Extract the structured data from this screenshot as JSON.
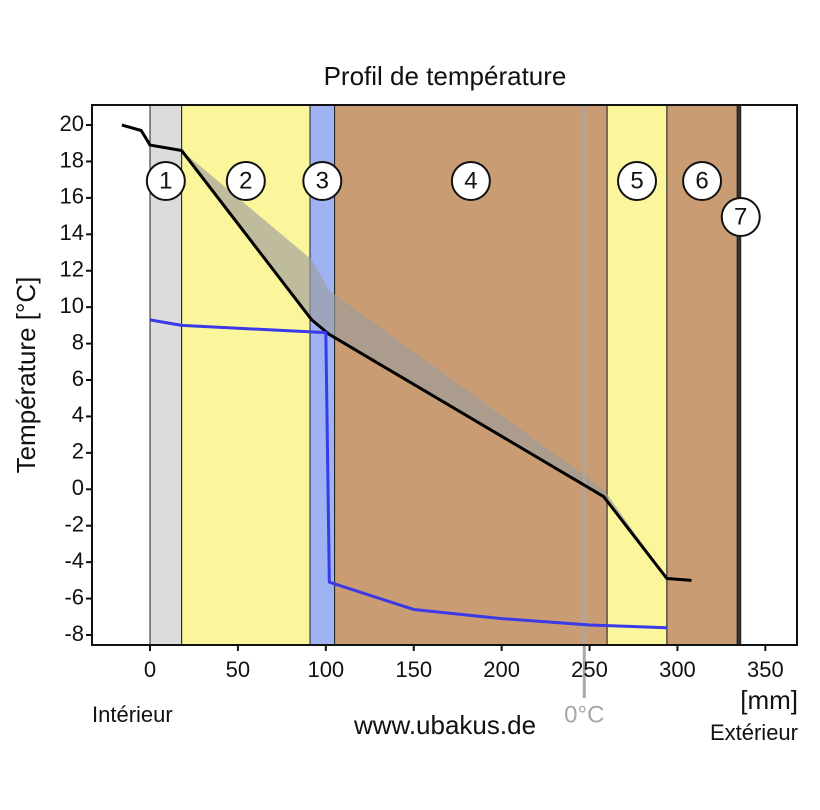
{
  "chart_data": {
    "type": "line",
    "title": "Profil de température",
    "y_label": "Température [°C]",
    "x_label": "[mm]",
    "left_note": "Intérieur",
    "right_note": "Extérieur",
    "source": "www.ubakus.de",
    "xlim": [
      -33,
      368
    ],
    "ylim": [
      -8.55,
      21.1
    ],
    "xticks": [
      0,
      50,
      100,
      150,
      200,
      250,
      300,
      350
    ],
    "yticks": [
      20,
      18,
      16,
      14,
      12,
      10,
      8,
      6,
      4,
      2,
      0,
      -2,
      -4,
      -6,
      -8
    ],
    "layers": [
      {
        "label": "1",
        "x0": 0,
        "x1": 18,
        "color": "#dcdcdc"
      },
      {
        "label": "2",
        "x0": 18,
        "x1": 91,
        "color": "#fbf69c"
      },
      {
        "label": "3",
        "x0": 91,
        "x1": 105,
        "color": "#9fb2f2"
      },
      {
        "label": "4",
        "x0": 105,
        "x1": 260,
        "color": "#c99c74"
      },
      {
        "label": "5",
        "x0": 260,
        "x1": 294,
        "color": "#fbf69c"
      },
      {
        "label": "6",
        "x0": 294,
        "x1": 334,
        "color": "#c99c74"
      },
      {
        "label": "7",
        "x0": 334,
        "x1": 336,
        "color": "#333333"
      }
    ],
    "band": {
      "color": "#9c9c9c",
      "x": [
        18,
        92,
        102,
        258,
        294
      ],
      "upper": [
        18.6,
        12.6,
        10.9,
        0.0,
        -4.9
      ],
      "lower": [
        18.6,
        9.3,
        8.5,
        -0.4,
        -4.9
      ]
    },
    "series": [
      {
        "color": "#000000",
        "x": [
          -16,
          -5,
          0,
          18,
          92,
          102,
          258,
          294,
          308
        ],
        "values": [
          20.0,
          19.7,
          18.9,
          18.6,
          9.3,
          8.5,
          -0.4,
          -4.9,
          -5.0
        ]
      },
      {
        "color": "#3a3ae8",
        "x": [
          0,
          18,
          100,
          102,
          150,
          200,
          250,
          294
        ],
        "values": [
          9.3,
          9.0,
          8.6,
          -5.1,
          -6.6,
          -7.1,
          -7.45,
          -7.6
        ]
      }
    ],
    "zero_line": {
      "x": 247,
      "label": "0°C",
      "color": "#a8a8a8"
    }
  }
}
